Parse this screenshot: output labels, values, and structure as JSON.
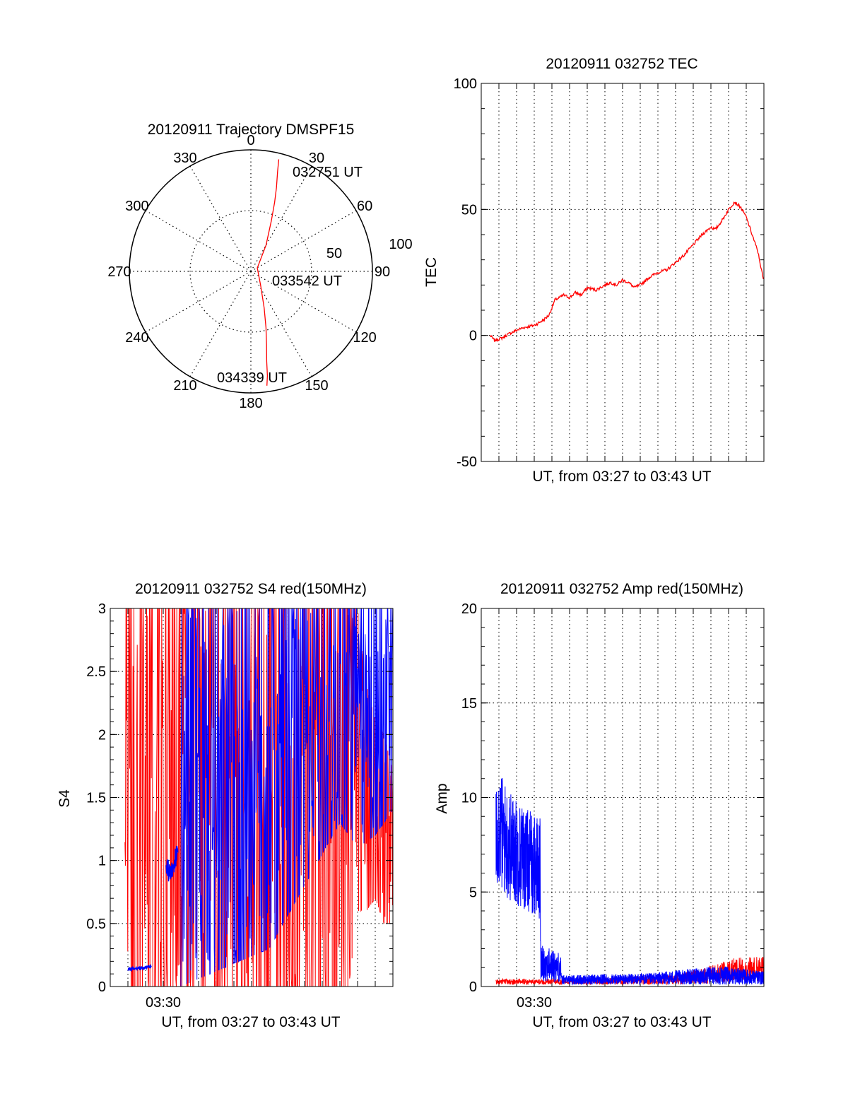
{
  "colors": {
    "red_channel": "#ff0000",
    "blue_channel": "#0000ff",
    "axes": "#000000",
    "grid": "#000000"
  },
  "chart_data": [
    {
      "type": "polar",
      "title": "20120911 Trajectory DMSPF15",
      "azimuth_labels": [
        "0",
        "30",
        "60",
        "90",
        "120",
        "150",
        "180",
        "210",
        "240",
        "270",
        "300",
        "330"
      ],
      "radial_labels": [
        "50",
        "100"
      ],
      "radial_ticks": [
        50,
        100
      ],
      "rmax": 100,
      "grid": "dotted",
      "series": [
        {
          "color": "#ff0000",
          "points": [
            [
              14,
              95
            ],
            [
              15,
              85
            ],
            [
              17,
              72
            ],
            [
              19,
              60
            ],
            [
              22,
              45
            ],
            [
              30,
              25
            ],
            [
              62,
              6
            ],
            [
              145,
              14
            ],
            [
              160,
              32
            ],
            [
              165,
              48
            ],
            [
              168,
              62
            ],
            [
              170,
              75
            ],
            [
              171,
              87
            ],
            [
              172,
              95
            ]
          ]
        }
      ],
      "annotations": [
        {
          "text": "032751 UT",
          "az": 22,
          "r": 98
        },
        {
          "text": "033542 UT",
          "az": 100,
          "r": 30
        },
        {
          "text": "034339 UT",
          "az": 170,
          "r": 96
        }
      ]
    },
    {
      "type": "line",
      "title": "20120911 032752 TEC",
      "xlabel": "UT, from 03:27 to 03:43 UT",
      "ylabel": "TEC",
      "xlim": [
        "03:27",
        "03:43"
      ],
      "ylim": [
        -50,
        100
      ],
      "y_ticks": [
        -50,
        0,
        50,
        100
      ],
      "x_tick_labels": [],
      "grid": true,
      "series": [
        {
          "color": "#ff0000",
          "points": [
            [
              "03:27:30",
              0
            ],
            [
              "03:27:45",
              -2
            ],
            [
              "03:28:10",
              -1
            ],
            [
              "03:28:40",
              1
            ],
            [
              "03:29:20",
              3
            ],
            [
              "03:30:00",
              4
            ],
            [
              "03:30:30",
              6
            ],
            [
              "03:30:50",
              8
            ],
            [
              "03:31:10",
              14
            ],
            [
              "03:31:40",
              16
            ],
            [
              "03:32:00",
              15
            ],
            [
              "03:32:20",
              17
            ],
            [
              "03:32:40",
              16
            ],
            [
              "03:33:00",
              19
            ],
            [
              "03:33:30",
              18
            ],
            [
              "03:34:00",
              20
            ],
            [
              "03:34:20",
              21
            ],
            [
              "03:34:40",
              20
            ],
            [
              "03:35:00",
              22
            ],
            [
              "03:35:20",
              21
            ],
            [
              "03:35:40",
              19
            ],
            [
              "03:36:00",
              20
            ],
            [
              "03:36:30",
              23
            ],
            [
              "03:37:00",
              25
            ],
            [
              "03:37:30",
              26
            ],
            [
              "03:38:00",
              29
            ],
            [
              "03:38:30",
              32
            ],
            [
              "03:39:00",
              36
            ],
            [
              "03:39:30",
              40
            ],
            [
              "03:40:00",
              43
            ],
            [
              "03:40:15",
              42
            ],
            [
              "03:40:40",
              46
            ],
            [
              "03:41:00",
              50
            ],
            [
              "03:41:20",
              53
            ],
            [
              "03:41:40",
              51
            ],
            [
              "03:42:00",
              47
            ],
            [
              "03:42:20",
              40
            ],
            [
              "03:42:40",
              33
            ],
            [
              "03:43:00",
              21
            ]
          ]
        }
      ]
    },
    {
      "type": "line",
      "title": "20120911 032752 S4 red(150MHz)",
      "xlabel": "UT, from 03:27 to 03:43 UT",
      "ylabel": "S4",
      "xlim": [
        "03:27",
        "03:43"
      ],
      "ylim": [
        0,
        3
      ],
      "y_ticks": [
        0,
        0.5,
        1,
        1.5,
        2,
        2.5,
        3
      ],
      "y_tick_labels": [
        "0",
        "0.5",
        "1",
        "1.5",
        "2",
        "2.5",
        "3"
      ],
      "x_tick_labels": [
        {
          "t": "03:30",
          "label": "03:30"
        }
      ],
      "grid": true,
      "series": [
        {
          "name": "",
          "color": "#ff0000",
          "envelope": [
            [
              "03:27:50",
              0,
              3
            ],
            [
              "03:30:00",
              0,
              3
            ],
            [
              "03:35:00",
              0,
              3
            ],
            [
              "03:40:30",
              0,
              3
            ],
            [
              "03:41:00",
              0.6,
              3
            ],
            [
              "03:41:30",
              0.6,
              2.4
            ],
            [
              "03:42:00",
              0.7,
              2.1
            ],
            [
              "03:42:30",
              0.5,
              2.0
            ],
            [
              "03:43:00",
              0.5,
              1.7
            ]
          ]
        },
        {
          "name": "",
          "color": "#0000ff",
          "points": [
            [
              "03:28:00",
              0.14
            ],
            [
              "03:28:30",
              0.14
            ],
            [
              "03:29:00",
              0.15
            ],
            [
              "03:29:20",
              0.16
            ],
            [
              "03:30:10",
              0.95
            ],
            [
              "03:30:25",
              0.88
            ],
            [
              "03:30:40",
              1.0
            ],
            [
              "03:30:50",
              1.05
            ]
          ],
          "envelope": [
            [
              "03:31:00",
              0,
              3
            ],
            [
              "03:36:00",
              0.3,
              3
            ],
            [
              "03:38:00",
              0.8,
              3
            ],
            [
              "03:40:00",
              1.3,
              3
            ],
            [
              "03:41:00",
              1.1,
              3
            ],
            [
              "03:42:00",
              1.2,
              3
            ],
            [
              "03:43:00",
              1.4,
              3
            ]
          ]
        }
      ]
    },
    {
      "type": "line",
      "title": "20120911 032752 Amp red(150MHz)",
      "xlabel": "UT, from 03:27 to 03:43 UT",
      "ylabel": "Amp",
      "xlim": [
        "03:27",
        "03:43"
      ],
      "ylim": [
        0,
        20
      ],
      "y_ticks": [
        0,
        5,
        10,
        15,
        20
      ],
      "x_tick_labels": [
        {
          "t": "03:30",
          "label": "03:30"
        }
      ],
      "grid": true,
      "series": [
        {
          "name": "",
          "color": "#ff0000",
          "envelope": [
            [
              "03:27:50",
              0.1,
              0.4
            ],
            [
              "03:30:20",
              0.1,
              0.4
            ],
            [
              "03:38:00",
              0.1,
              0.6
            ],
            [
              "03:41:20",
              0.2,
              1.5
            ],
            [
              "03:43:00",
              0.3,
              1.6
            ]
          ]
        },
        {
          "name": "",
          "color": "#0000ff",
          "envelope": [
            [
              "03:27:50",
              5.5,
              12.0
            ],
            [
              "03:28:30",
              4.5,
              10.5
            ],
            [
              "03:29:30",
              4.0,
              9.5
            ],
            [
              "03:30:20",
              3.5,
              9.0
            ],
            [
              "03:30:22",
              0.3,
              2.2
            ],
            [
              "03:31:30",
              0.2,
              1.8
            ],
            [
              "03:31:32",
              0.1,
              0.6
            ],
            [
              "03:36:30",
              0.1,
              0.7
            ],
            [
              "03:40:30",
              0.1,
              1.1
            ],
            [
              "03:43:00",
              0.1,
              0.8
            ]
          ]
        }
      ]
    }
  ]
}
